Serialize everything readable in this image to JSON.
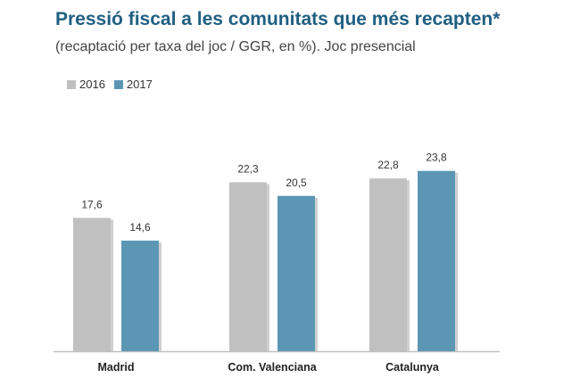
{
  "chart_data": {
    "type": "bar",
    "title": "Pressió fiscal a les comunitats que més recapten*",
    "subtitle": "(recaptació per taxa del joc / GGR, en %). Joc presencial",
    "categories": [
      "Madrid",
      "Com. Valenciana",
      "Catalunya"
    ],
    "series": [
      {
        "name": "2016",
        "values": [
          17.6,
          22.3,
          22.8
        ],
        "labels": [
          "17,6",
          "22,3",
          "22,8"
        ]
      },
      {
        "name": "2017",
        "values": [
          14.6,
          20.5,
          23.8
        ],
        "labels": [
          "14,6",
          "20,5",
          "23,8"
        ]
      }
    ],
    "ylim": [
      0,
      30
    ],
    "grid": false,
    "legend_position": "top-left",
    "colors": {
      "2016": "#c0c0c0",
      "2017": "#5b97b5",
      "title": "#1f5f82",
      "axis": "#bfbfbf"
    }
  }
}
